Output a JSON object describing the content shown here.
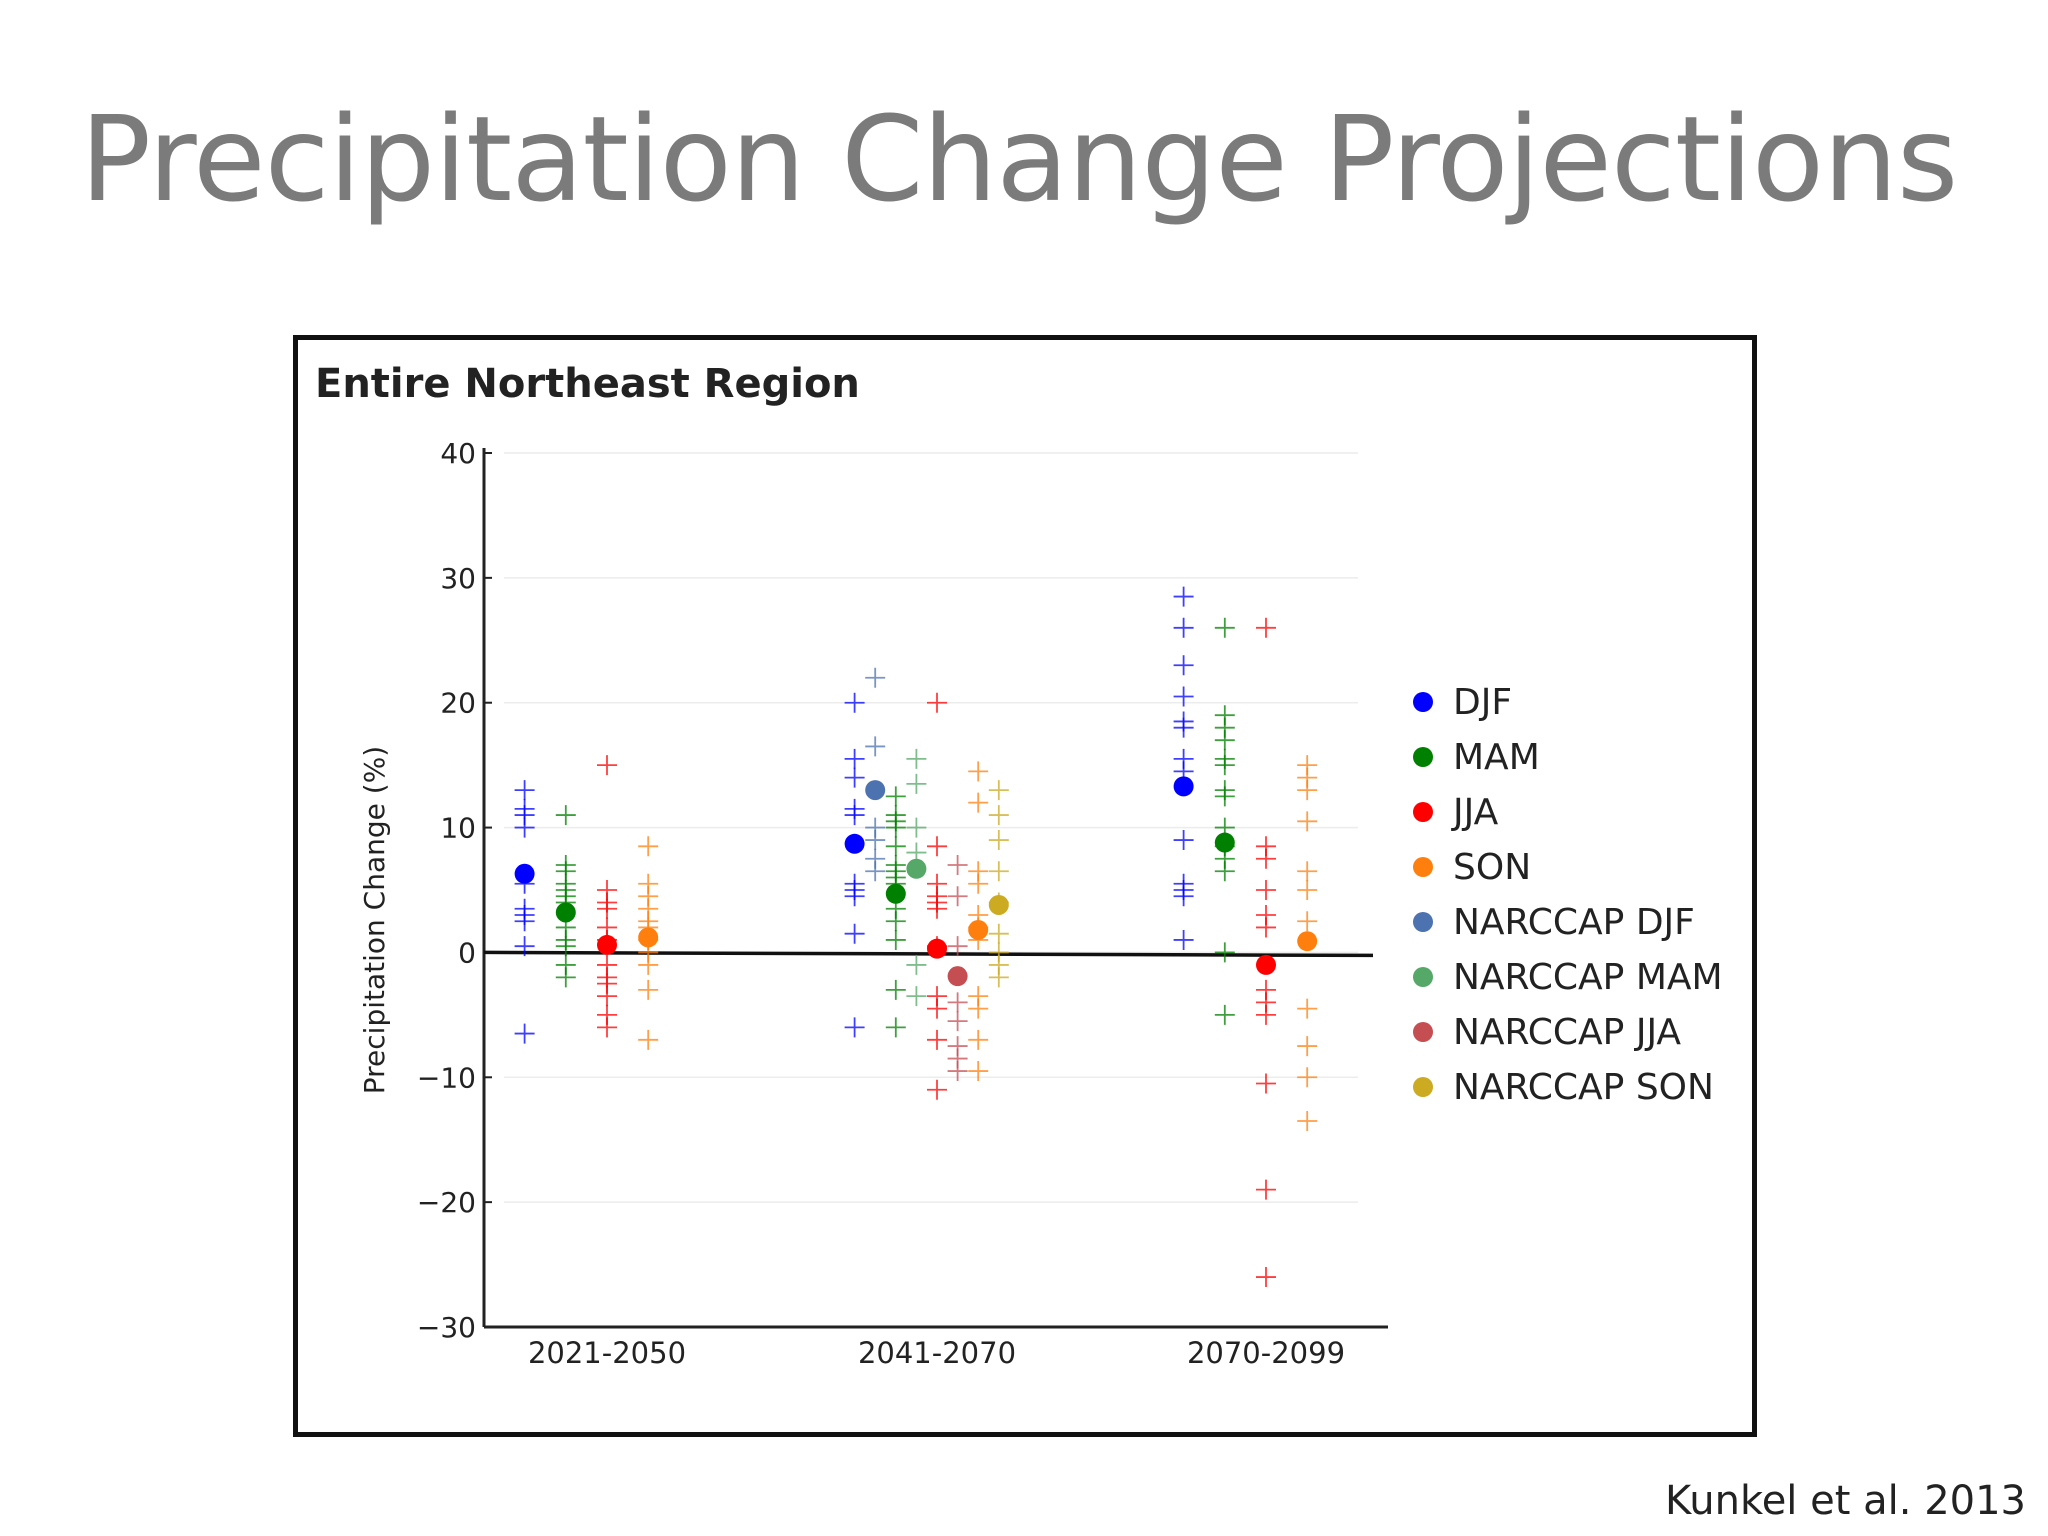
{
  "slide": {
    "title": "Precipitation Change Projections",
    "citation": "Kunkel et al. 2013"
  },
  "chart_data": {
    "type": "scatter",
    "title": "Entire Northeast Region",
    "xlabel": "",
    "ylabel": "Precipitation Change (%)",
    "ylim": [
      -30,
      40
    ],
    "yticks": [
      -30,
      -20,
      -10,
      0,
      10,
      20,
      30,
      40
    ],
    "categories": [
      "2021-2050",
      "2041-2070",
      "2070-2099"
    ],
    "grid": true,
    "legend_position": "right",
    "zero_line": true,
    "series": [
      {
        "name": "DJF",
        "color": "#0000ff",
        "offset": -2,
        "means": [
          6.3,
          8.7,
          13.3
        ],
        "models": [
          [
            13,
            11.5,
            11,
            10,
            5.5,
            3.5,
            3,
            2.5,
            0.5,
            -6.5
          ],
          [
            20,
            15.5,
            14,
            11.5,
            11,
            5.5,
            5,
            4.5,
            1.5,
            -6
          ],
          [
            28.5,
            26,
            23,
            20.5,
            18.5,
            18,
            15.5,
            14.5,
            9,
            5.5,
            5,
            4.5,
            1
          ]
        ]
      },
      {
        "name": "MAM",
        "color": "#008000",
        "offset": -1,
        "means": [
          3.2,
          4.7,
          8.8
        ],
        "models": [
          [
            11,
            7,
            6.5,
            5.5,
            5,
            4.5,
            4,
            2,
            1,
            0.5,
            -1,
            -2
          ],
          [
            12.5,
            11,
            10.5,
            10,
            8.5,
            7,
            6,
            6.5,
            5.5,
            3.5,
            2.5,
            1,
            -3,
            -6
          ],
          [
            26,
            19,
            18,
            17,
            15.5,
            15,
            13,
            12.5,
            10,
            8.5,
            7.5,
            6.5,
            0,
            -5
          ]
        ]
      },
      {
        "name": "JJA",
        "color": "#ff0000",
        "offset": 0,
        "means": [
          0.6,
          0.3,
          -1
        ],
        "models": [
          [
            15,
            5,
            4,
            3.5,
            2,
            1,
            -1,
            -2,
            -2.5,
            -3.5,
            -5,
            -6
          ],
          [
            20,
            8.5,
            5.5,
            4.5,
            4,
            3.5,
            0.5,
            -3.5,
            -4.5,
            -7,
            -11
          ],
          [
            26,
            8.5,
            7.5,
            5,
            3,
            2,
            -3,
            -4,
            -5,
            -10.5,
            -19,
            -26
          ]
        ]
      },
      {
        "name": "SON",
        "color": "#ff7f0e",
        "offset": 1,
        "means": [
          1.2,
          1.8,
          0.9
        ],
        "models": [
          [
            8.5,
            5.5,
            4.5,
            3.5,
            2.5,
            2,
            1,
            0,
            -1,
            -3,
            -7
          ],
          [
            14.5,
            12,
            6.5,
            5.5,
            3,
            2,
            1,
            -3.5,
            -4.5,
            -7,
            -9.5
          ],
          [
            15,
            14,
            13,
            10.5,
            6.5,
            5,
            2.5,
            -4.5,
            -7.5,
            -10,
            -13.5
          ]
        ]
      },
      {
        "name": "NARCCAP DJF",
        "color": "#4c72b0",
        "offset": -1.5,
        "means": [
          null,
          13,
          null
        ],
        "models": [
          [],
          [
            22,
            16.5,
            10,
            9,
            7.5,
            6.5
          ],
          []
        ]
      },
      {
        "name": "NARCCAP MAM",
        "color": "#55a868",
        "offset": -0.5,
        "means": [
          null,
          6.7,
          null
        ],
        "models": [
          [],
          [
            15.5,
            13.5,
            10,
            8,
            -1,
            -3.5
          ],
          []
        ]
      },
      {
        "name": "NARCCAP JJA",
        "color": "#c44e52",
        "offset": 0.5,
        "means": [
          null,
          -1.9,
          null
        ],
        "models": [
          [],
          [
            7,
            4.5,
            0.5,
            -4,
            -5.5,
            -7.5,
            -8.5,
            -9.5
          ],
          []
        ]
      },
      {
        "name": "NARCCAP SON",
        "color": "#ccaa22",
        "offset": 1.5,
        "means": [
          null,
          3.8,
          null
        ],
        "models": [
          [],
          [
            13,
            11,
            9,
            6.5,
            4,
            1.5,
            0,
            -1,
            -2
          ],
          []
        ]
      }
    ]
  }
}
